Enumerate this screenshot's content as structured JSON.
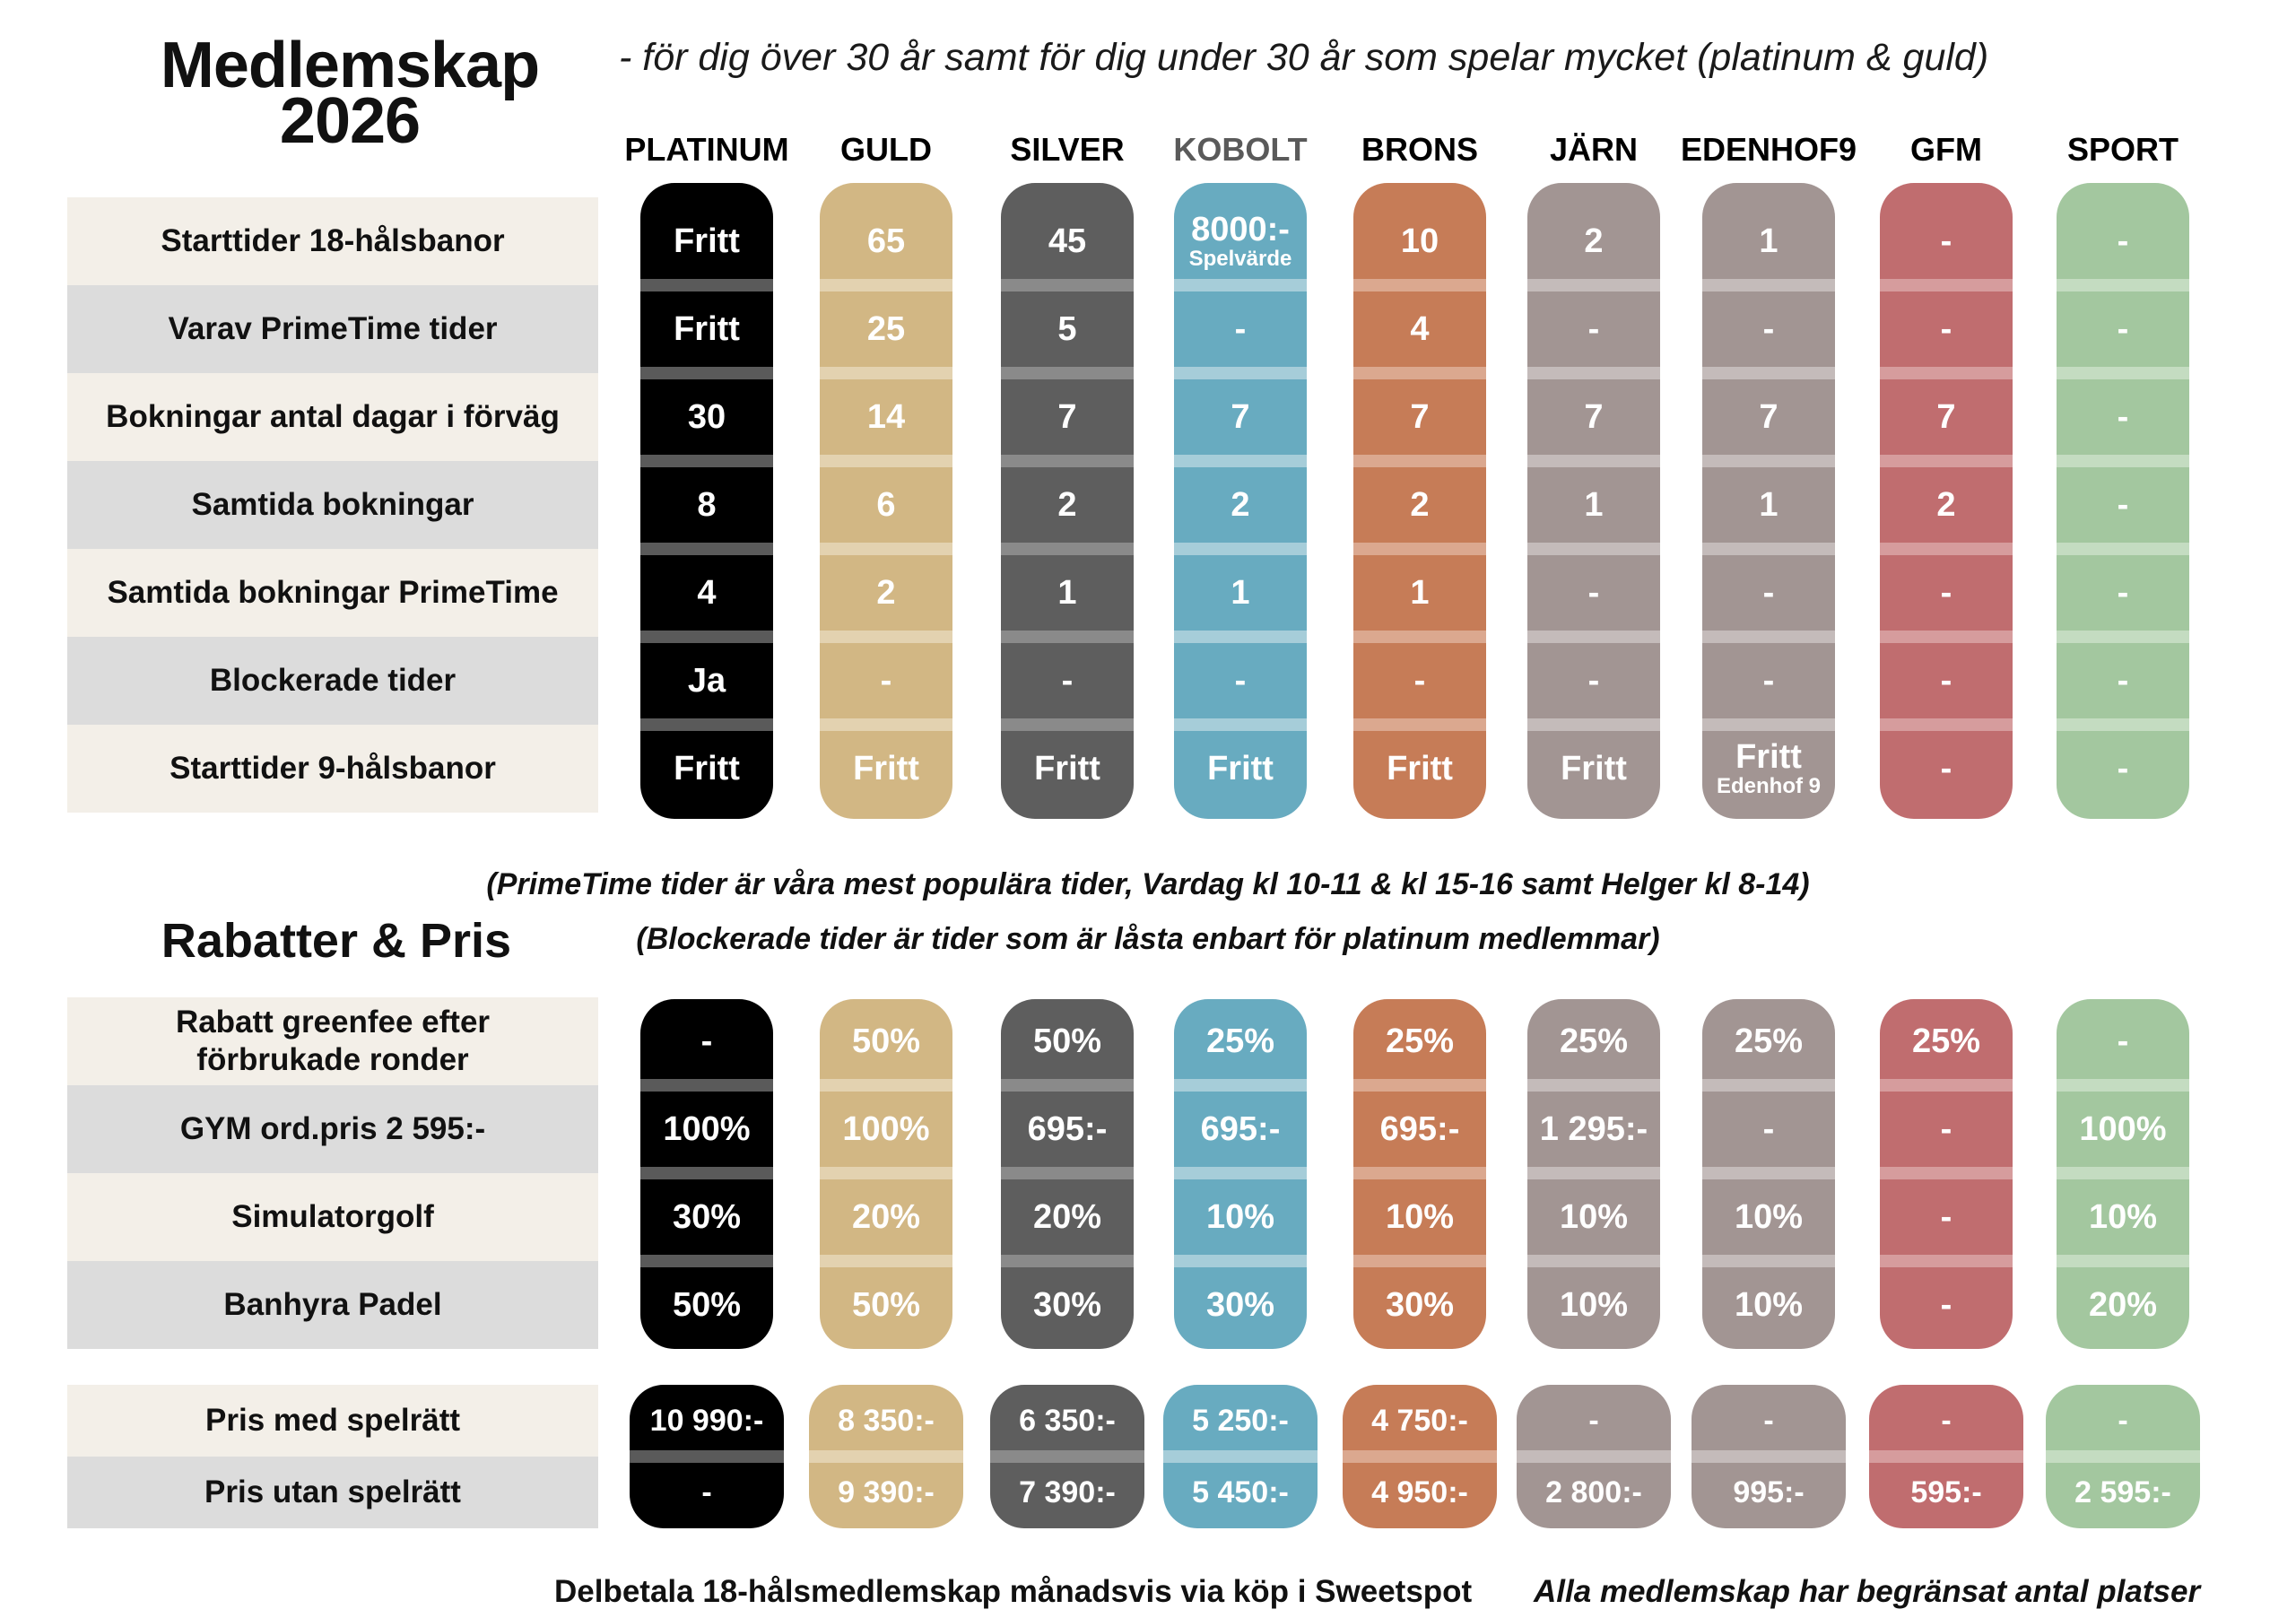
{
  "title": {
    "line1": "Medlemskap",
    "line2": "2026"
  },
  "subtitle": "- för dig över 30 år samt för dig under 30 år som spelar mycket (platinum & guld)",
  "columns": [
    {
      "name": "PLATINUM",
      "color": "#000000",
      "sep": "#5a5a5a",
      "head_color": "#000000"
    },
    {
      "name": "GULD",
      "color": "#d2b784",
      "sep": "#e3d2b0",
      "head_color": "#000000"
    },
    {
      "name": "SILVER",
      "color": "#5e5e5e",
      "sep": "#8a8a8a",
      "head_color": "#000000"
    },
    {
      "name": "KOBOLT",
      "color": "#68abc0",
      "sep": "#a6cdd9",
      "head_color": "#5a5a5a"
    },
    {
      "name": "BRONS",
      "color": "#c67c57",
      "sep": "#dba88f",
      "head_color": "#000000"
    },
    {
      "name": "JÄRN",
      "color": "#a29593",
      "sep": "#c4bbba",
      "head_color": "#000000"
    },
    {
      "name": "EDENHOF9",
      "color": "#a29593",
      "sep": "#c4bbba",
      "head_color": "#000000"
    },
    {
      "name": "GFM",
      "color": "#c06d6f",
      "sep": "#d69c9d",
      "head_color": "#000000"
    },
    {
      "name": "SPORT",
      "color": "#a3c79f",
      "sep": "#c4dcc1",
      "head_color": "#000000"
    }
  ],
  "section1": {
    "rows": [
      {
        "label": "Starttider 18-hålsbanor",
        "values": [
          "Fritt",
          "65",
          "45",
          {
            "main": "8000:-",
            "sub": "Spelvärde"
          },
          "10",
          "2",
          "1",
          "-",
          "-"
        ]
      },
      {
        "label": "Varav PrimeTime tider",
        "values": [
          "Fritt",
          "25",
          "5",
          "-",
          "4",
          "-",
          "-",
          "-",
          "-"
        ]
      },
      {
        "label": "Bokningar antal dagar i förväg",
        "values": [
          "30",
          "14",
          "7",
          "7",
          "7",
          "7",
          "7",
          "7",
          "-"
        ]
      },
      {
        "label": "Samtida bokningar",
        "values": [
          "8",
          "6",
          "2",
          "2",
          "2",
          "1",
          "1",
          "2",
          "-"
        ]
      },
      {
        "label": "Samtida bokningar PrimeTime",
        "values": [
          "4",
          "2",
          "1",
          "1",
          "1",
          "-",
          "-",
          "-",
          "-"
        ]
      },
      {
        "label": "Blockerade tider",
        "values": [
          "Ja",
          "-",
          "-",
          "-",
          "-",
          "-",
          "-",
          "-",
          "-"
        ]
      },
      {
        "label": "Starttider 9-hålsbanor",
        "values": [
          "Fritt",
          "Fritt",
          "Fritt",
          "Fritt",
          "Fritt",
          "Fritt",
          {
            "main": "Fritt",
            "sub": "Edenhof 9"
          },
          "-",
          "-"
        ]
      }
    ]
  },
  "notes": {
    "primetime": "(PrimeTime tider är våra mest populära tider, Vardag kl 10-11 & kl 15-16 samt Helger kl 8-14)",
    "blocked": "(Blockerade tider är tider som är låsta enbart för platinum medlemmar)"
  },
  "section2": {
    "title": "Rabatter & Pris",
    "rows": [
      {
        "label": "Rabatt greenfee efter\nförbrukade ronder",
        "values": [
          "-",
          "50%",
          "50%",
          "25%",
          "25%",
          "25%",
          "25%",
          "25%",
          "-"
        ]
      },
      {
        "label": "GYM ord.pris 2 595:-",
        "values": [
          "100%",
          "100%",
          "695:-",
          "695:-",
          "695:-",
          "1 295:-",
          "-",
          "-",
          "100%"
        ]
      },
      {
        "label": "Simulatorgolf",
        "values": [
          "30%",
          "20%",
          "20%",
          "10%",
          "10%",
          "10%",
          "10%",
          "-",
          "10%"
        ]
      },
      {
        "label": "Banhyra Padel",
        "values": [
          "50%",
          "50%",
          "30%",
          "30%",
          "30%",
          "10%",
          "10%",
          "-",
          "20%"
        ]
      }
    ]
  },
  "section3": {
    "rows": [
      {
        "label": "Pris med spelrätt",
        "values": [
          "10 990:-",
          "8 350:-",
          "6 350:-",
          "5 250:-",
          "4 750:-",
          "-",
          "-",
          "-",
          "-"
        ]
      },
      {
        "label": "Pris utan spelrätt",
        "values": [
          "-",
          "9 390:-",
          "7 390:-",
          "5 450:-",
          "4 950:-",
          "2 800:-",
          "995:-",
          "595:-",
          "2 595:-"
        ]
      }
    ]
  },
  "footer": {
    "left": "Delbetala 18-hålsmedlemskap månadsvis via köp i Sweetspot",
    "right": "Alla medlemskap har begränsat antal platser"
  },
  "label_colors": {
    "light": "#f3efe8",
    "dark": "#dcdcdc"
  }
}
